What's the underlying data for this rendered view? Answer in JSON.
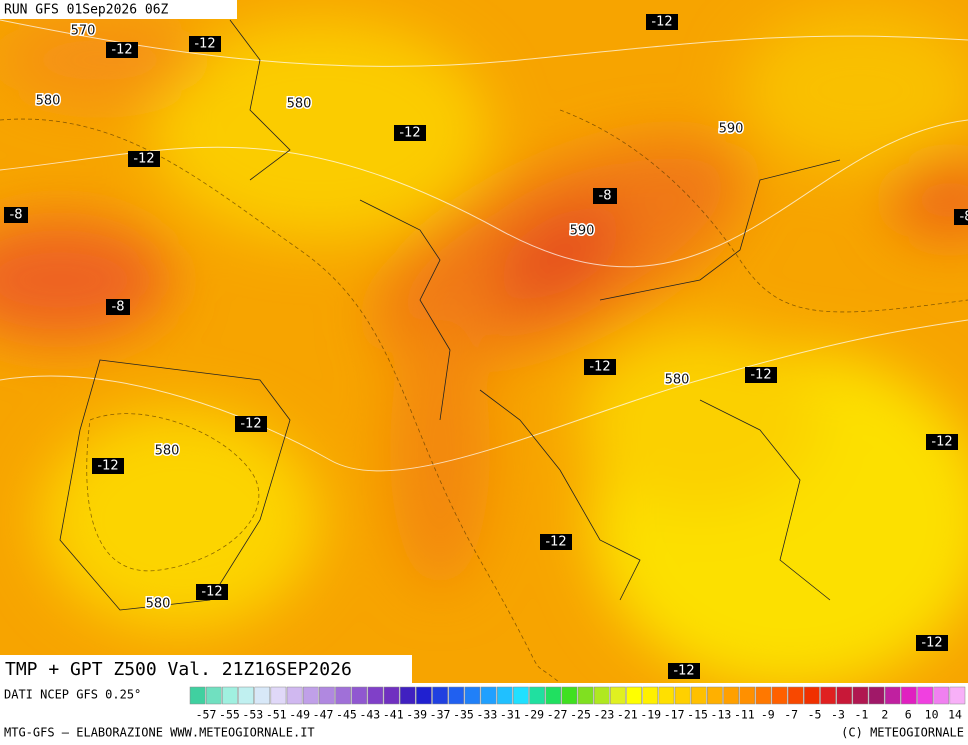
{
  "header": {
    "run": "RUN GFS 01Sep2026 06Z"
  },
  "map": {
    "height_labels": [
      "570",
      "580",
      "580",
      "580",
      "580",
      "580",
      "590",
      "590"
    ],
    "temperature_labels": [
      "-12",
      "-12",
      "-12",
      "-12",
      "-12",
      "-12",
      "-12",
      "-12",
      "-12",
      "-12",
      "-12",
      "-12",
      "-12",
      "-12",
      "-8",
      "-8",
      "-8",
      "-8"
    ]
  },
  "footer": {
    "title": "TMP + GPT Z500 Val. 21Z16SEP2026",
    "source": "DATI NCEP GFS 0.25°",
    "scale": {
      "colors": [
        "#40d0a0",
        "#70e0c0",
        "#a0f0e0",
        "#c0f0f0",
        "#d8e8f8",
        "#e0d8f8",
        "#d0b8f0",
        "#c0a0e8",
        "#b088e0",
        "#a070d8",
        "#9058d0",
        "#8040c8",
        "#7030c0",
        "#4020c0",
        "#2020d0",
        "#2040e0",
        "#2060f0",
        "#2080f8",
        "#20a0ff",
        "#20c0ff",
        "#20e0ff",
        "#20e0a0",
        "#20e060",
        "#40e020",
        "#80e020",
        "#b0e820",
        "#e0f020",
        "#ffff00",
        "#fff000",
        "#ffe000",
        "#ffd000",
        "#ffc000",
        "#ffb000",
        "#ffa000",
        "#ff9000",
        "#ff7800",
        "#ff6000",
        "#f84800",
        "#f03000",
        "#e02020",
        "#c81838",
        "#b01850",
        "#a01868",
        "#c020a0",
        "#e020c0",
        "#f040e0",
        "#f080f0",
        "#f8b0f8"
      ],
      "labels": [
        "-57",
        "-55",
        "-53",
        "-51",
        "-49",
        "-47",
        "-45",
        "-43",
        "-41",
        "-39",
        "-37",
        "-35",
        "-33",
        "-31",
        "-29",
        "-27",
        "-25",
        "-23",
        "-21",
        "-19",
        "-17",
        "-15",
        "-13",
        "-11",
        "-9",
        "-7",
        "-5",
        "-3",
        "-1",
        "2",
        "6",
        "10",
        "14"
      ]
    },
    "credit": "MTG-GFS – ELABORAZIONE WWW.METEOGIORNALE.IT",
    "copyright": "(C) METEOGIORNALE"
  }
}
